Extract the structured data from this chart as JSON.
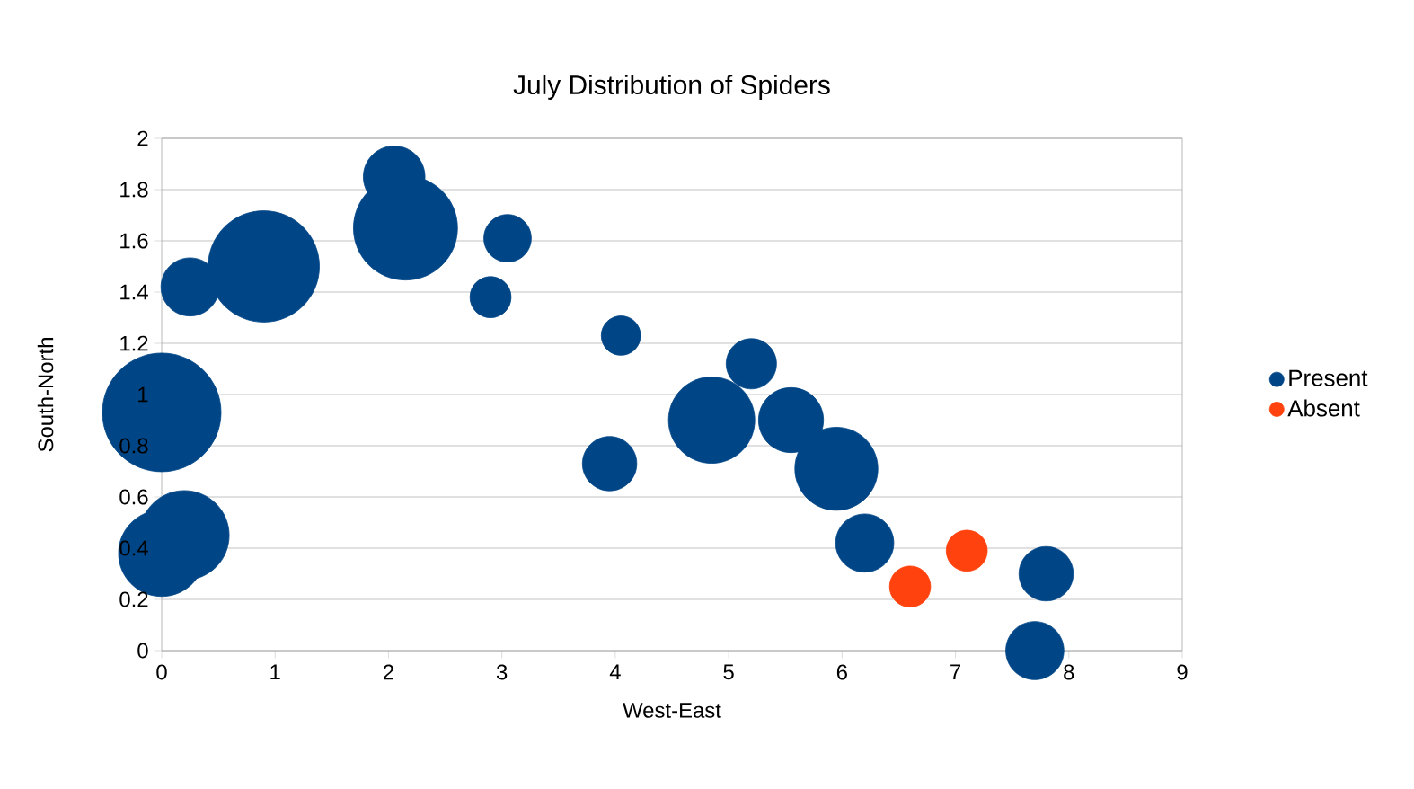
{
  "chart_data": {
    "type": "bubble",
    "title": "July Distribution of Spiders",
    "xlabel": "West-East",
    "ylabel": "South-North",
    "xlim": [
      0,
      9
    ],
    "xticks": [
      0,
      1,
      2,
      3,
      4,
      5,
      6,
      7,
      8,
      9
    ],
    "ylim": [
      0,
      2
    ],
    "yticks": [
      0,
      0.2,
      0.4,
      0.6,
      0.8,
      1,
      1.2,
      1.4,
      1.6,
      1.8,
      2
    ],
    "grid": "y",
    "legend": "right",
    "series": [
      {
        "name": "Present",
        "color": "#004586",
        "x": [
          0.0,
          0.2,
          0.0,
          0.25,
          0.9,
          2.05,
          2.15,
          3.05,
          2.9,
          4.05,
          3.95,
          4.85,
          5.2,
          5.55,
          5.95,
          6.2,
          7.8,
          7.7
        ],
        "values": [
          0.93,
          0.45,
          0.38,
          1.42,
          1.5,
          1.85,
          1.65,
          1.61,
          1.38,
          1.23,
          0.73,
          0.9,
          1.12,
          0.9,
          0.71,
          0.42,
          0.3,
          0.0
        ],
        "sizes": [
          1,
          0.57,
          0.53,
          0.24,
          0.88,
          0.27,
          0.77,
          0.16,
          0.12,
          0.11,
          0.21,
          0.53,
          0.18,
          0.3,
          0.49,
          0.24,
          0.21,
          0.24
        ]
      },
      {
        "name": "Absent",
        "color": "#ff420e",
        "x": [
          6.6,
          7.1
        ],
        "values": [
          0.25,
          0.39
        ],
        "sizes": [
          0.12,
          0.12
        ]
      }
    ]
  }
}
